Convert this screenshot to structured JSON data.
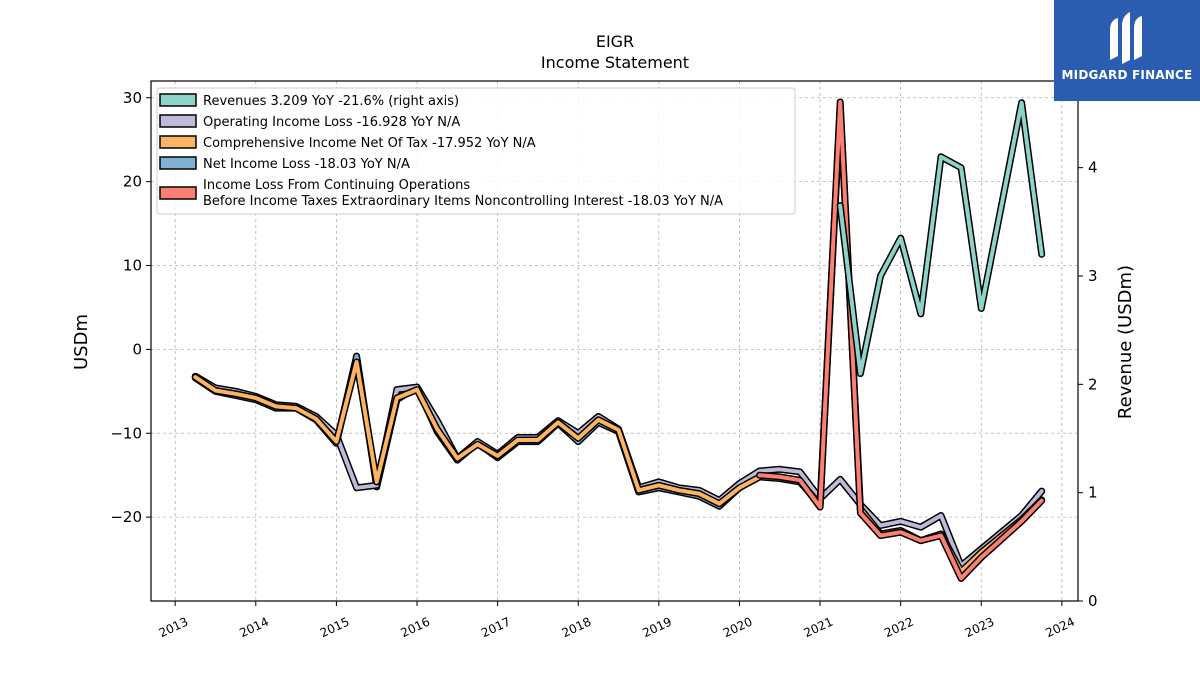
{
  "chart_data": {
    "type": "line",
    "title": "EIGR",
    "subtitle": "Income Statement",
    "ylabel": "USDm",
    "ylabel_right": "Revenue (USDm)",
    "xlabel": "",
    "ylim": [
      -30,
      32
    ],
    "ylim_right": [
      0,
      4.8
    ],
    "yticks": [
      -20,
      -10,
      0,
      10,
      20,
      30
    ],
    "yticks_right": [
      0,
      1,
      2,
      3,
      4
    ],
    "xlim": [
      2012.7,
      2024.2
    ],
    "xticks": [
      2013,
      2014,
      2015,
      2016,
      2017,
      2018,
      2019,
      2020,
      2021,
      2022,
      2023,
      2024
    ],
    "grid": true,
    "legend_position": "top-left",
    "series": [
      {
        "name": "Revenues  3.209 YoY -21.6% (right axis)",
        "color": "#8dd3c7",
        "axis": "right",
        "x": [
          2021.25,
          2021.5,
          2021.75,
          2022.0,
          2022.25,
          2022.5,
          2022.75,
          2023.0,
          2023.5,
          2023.75
        ],
        "values": [
          3.65,
          2.1,
          3.0,
          3.35,
          2.65,
          4.1,
          4.0,
          2.7,
          4.6,
          3.2
        ]
      },
      {
        "name": "Operating Income Loss  -16.928 YoY N/A",
        "color": "#bebada",
        "axis": "left",
        "x": [
          2013.25,
          2013.5,
          2013.75,
          2014.0,
          2014.25,
          2014.5,
          2014.75,
          2015.0,
          2015.25,
          2015.5,
          2015.75,
          2016.0,
          2016.25,
          2016.5,
          2016.75,
          2017.0,
          2017.25,
          2017.5,
          2017.75,
          2018.0,
          2018.25,
          2018.5,
          2018.75,
          2019.0,
          2019.25,
          2019.5,
          2019.75,
          2020.0,
          2020.25,
          2020.5,
          2020.75,
          2021.0,
          2021.25,
          2021.5,
          2021.75,
          2022.0,
          2022.25,
          2022.5,
          2022.75,
          2023.0,
          2023.5,
          2023.75
        ],
        "values": [
          -3.2,
          -4.6,
          -5.0,
          -5.6,
          -6.6,
          -6.8,
          -8.0,
          -10.2,
          -16.5,
          -16.2,
          -4.8,
          -4.5,
          -8.5,
          -13.0,
          -11.0,
          -12.5,
          -10.5,
          -10.5,
          -8.5,
          -10.0,
          -8.0,
          -9.5,
          -16.5,
          -15.8,
          -16.5,
          -16.8,
          -18.0,
          -16.0,
          -14.5,
          -14.3,
          -14.6,
          -17.8,
          -15.5,
          -18.5,
          -21.0,
          -20.5,
          -21.2,
          -19.8,
          -25.8,
          -23.8,
          -19.8,
          -16.9
        ]
      },
      {
        "name": "Comprehensive Income Net Of Tax  -17.952 YoY N/A",
        "color": "#fdb462",
        "axis": "left",
        "x": [
          2013.25,
          2013.5,
          2013.75,
          2014.0,
          2014.25,
          2014.5,
          2014.75,
          2015.0,
          2015.25,
          2015.5,
          2015.75,
          2016.0,
          2016.25,
          2016.5,
          2016.75,
          2017.0,
          2017.25,
          2017.5,
          2017.75,
          2018.0,
          2018.25,
          2018.5,
          2018.75,
          2019.0,
          2019.25,
          2019.5,
          2019.75,
          2020.0,
          2020.25,
          2020.5,
          2020.75,
          2021.0,
          2021.25,
          2021.5,
          2021.75,
          2022.0,
          2022.25,
          2022.5,
          2022.75,
          2023.0,
          2023.5,
          2023.75
        ],
        "values": [
          -3.3,
          -4.9,
          -5.3,
          -5.8,
          -6.8,
          -7.0,
          -8.3,
          -11.0,
          -1.5,
          -15.8,
          -5.8,
          -4.8,
          -9.5,
          -13.0,
          -11.3,
          -12.7,
          -10.8,
          -10.8,
          -8.7,
          -10.6,
          -8.4,
          -9.6,
          -16.8,
          -16.2,
          -16.8,
          -17.2,
          -18.4,
          -16.5,
          -15.2,
          -15.4,
          -15.8,
          -18.5,
          29.0,
          -19.0,
          -22.0,
          -21.6,
          -22.8,
          -22.0,
          -26.5,
          -24.2,
          -20.3,
          -17.95
        ]
      },
      {
        "name": "Net Income Loss  -18.03 YoY N/A",
        "color": "#80b1d3",
        "axis": "left",
        "x": [
          2013.25,
          2013.5,
          2013.75,
          2014.0,
          2014.25,
          2014.5,
          2014.75,
          2015.0,
          2015.25,
          2015.5,
          2015.75,
          2016.0,
          2016.25,
          2016.5,
          2016.75,
          2017.0,
          2017.25,
          2017.5,
          2017.75,
          2018.0,
          2018.25,
          2018.5,
          2018.75,
          2019.0,
          2019.25,
          2019.5,
          2019.75,
          2020.0,
          2020.25
        ],
        "values": [
          -3.4,
          -5.0,
          -5.5,
          -6.0,
          -7.0,
          -7.0,
          -8.4,
          -11.2,
          -0.8,
          -16.4,
          -6.0,
          -4.5,
          -9.8,
          -13.2,
          -11.2,
          -12.9,
          -11.0,
          -11.0,
          -8.8,
          -11.0,
          -8.7,
          -9.8,
          -17.0,
          -16.5,
          -17.0,
          -17.5,
          -18.7,
          -16.5,
          -15.0
        ]
      },
      {
        "name": "Income Loss From Continuing Operations\nBefore Income Taxes Extraordinary Items Noncontrolling Interest  -18.03 YoY N/A",
        "color": "#fb8072",
        "axis": "left",
        "x": [
          2020.25,
          2020.5,
          2020.75,
          2021.0,
          2021.25,
          2021.5,
          2021.75,
          2022.0,
          2022.25,
          2022.5,
          2022.75,
          2023.0,
          2023.5,
          2023.75
        ],
        "values": [
          -15.0,
          -15.2,
          -15.6,
          -18.8,
          29.5,
          -19.5,
          -22.2,
          -21.8,
          -22.8,
          -22.2,
          -27.3,
          -24.8,
          -20.5,
          -18.03
        ]
      }
    ]
  },
  "logo": {
    "text": "MIDGARD FINANCE"
  }
}
